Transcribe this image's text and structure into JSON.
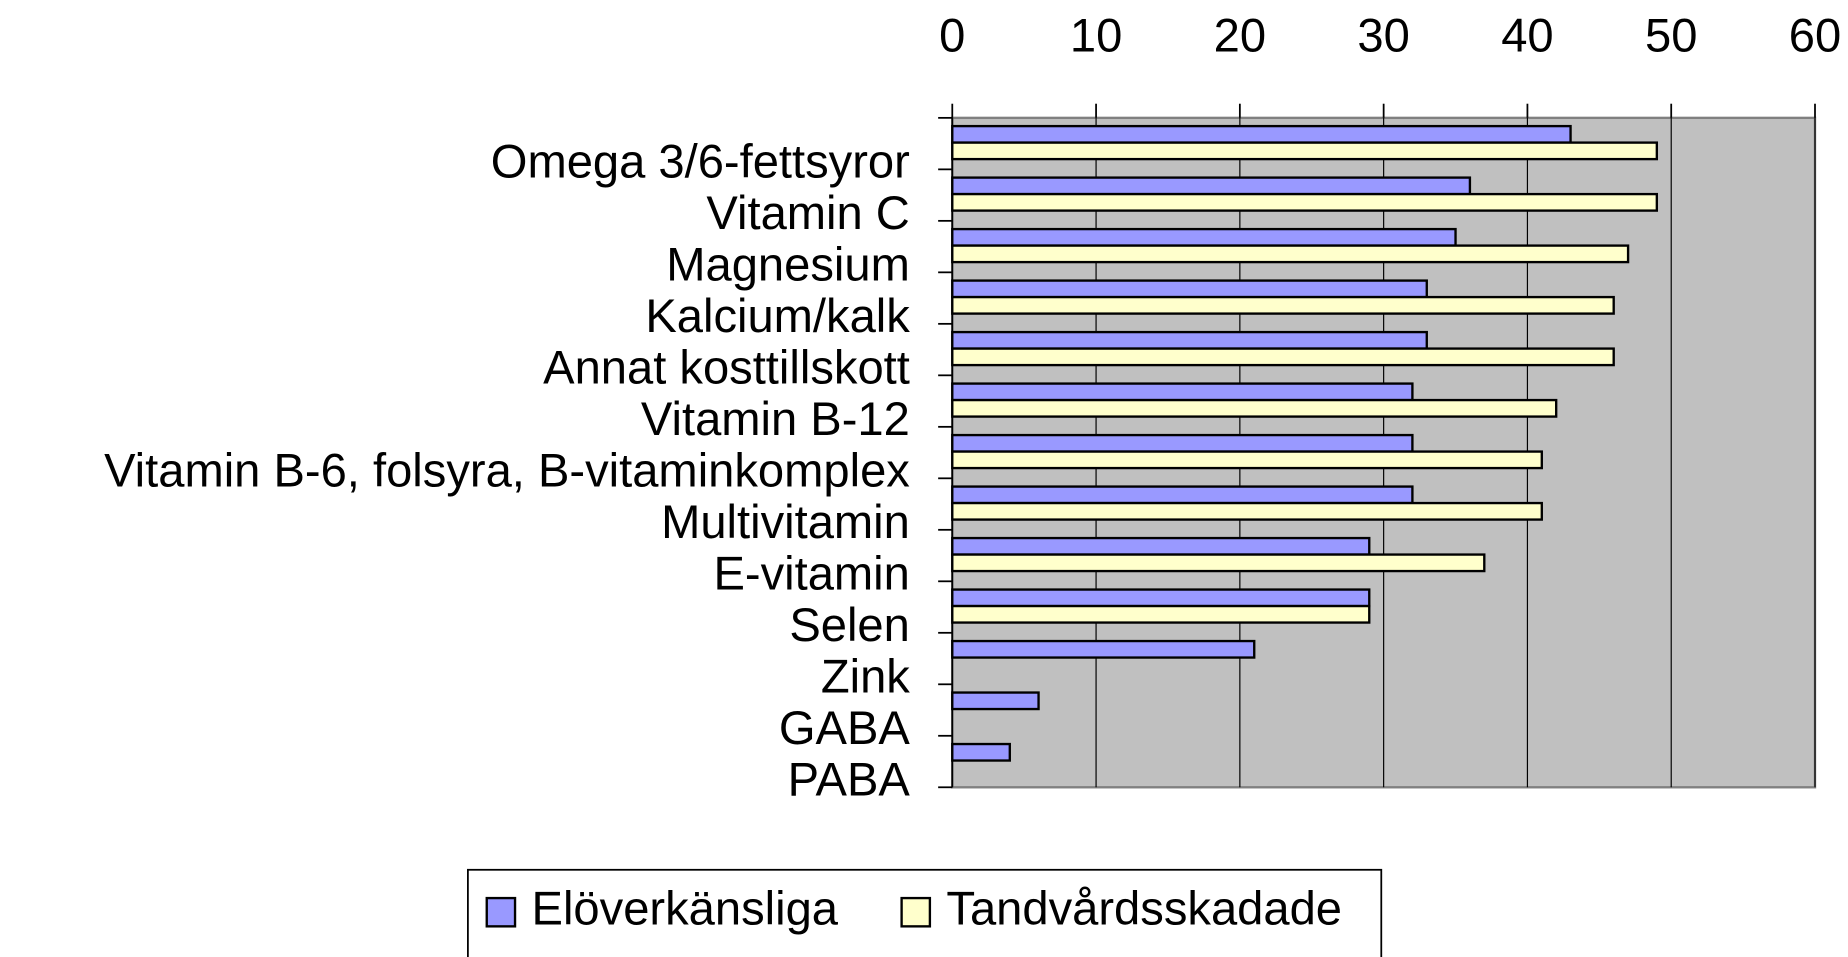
{
  "chart_data": {
    "type": "barh",
    "categories": [
      "Omega 3/6-fettsyror",
      "Vitamin C",
      "Magnesium",
      "Kalcium/kalk",
      "Annat kosttillskott",
      "Vitamin B-12",
      "Vitamin B-6, folsyra, B-vitaminkomplex",
      "Multivitamin",
      "E-vitamin",
      "Selen",
      "Zink",
      "GABA",
      "PABA"
    ],
    "series": [
      {
        "name": "Elöverkänsliga",
        "color": "#9999ff",
        "values": [
          43,
          36,
          35,
          33,
          33,
          32,
          32,
          32,
          29,
          29,
          21,
          6,
          4
        ]
      },
      {
        "name": "Tandvårdsskadade",
        "color": "#ffffcc",
        "values": [
          49,
          49,
          47,
          46,
          46,
          42,
          41,
          41,
          37,
          29,
          null,
          null,
          null
        ]
      }
    ],
    "xlim": [
      0,
      60
    ],
    "xticks": [
      0,
      10,
      20,
      30,
      40,
      50,
      60
    ],
    "grid": true,
    "legend": "bottom"
  }
}
